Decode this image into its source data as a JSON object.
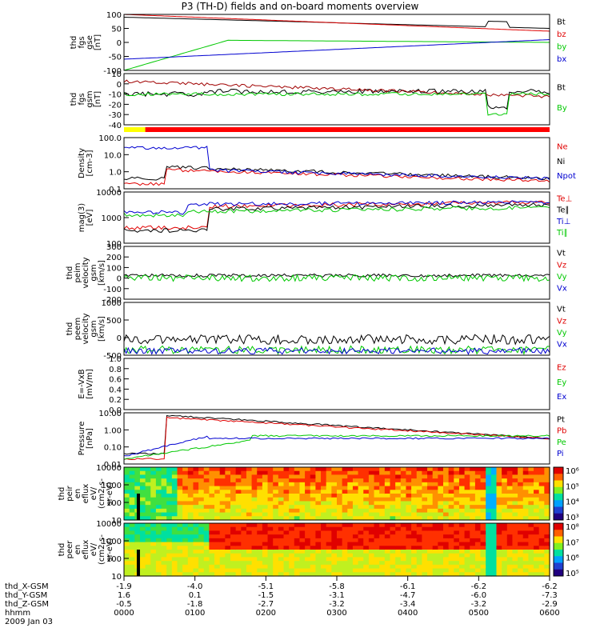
{
  "title": "P3 (TH-D) fields and on-board moments overview",
  "chart_data": {
    "type": "line",
    "x_time_labels": [
      "0000",
      "0100",
      "0200",
      "0300",
      "0400",
      "0500",
      "0600"
    ],
    "panels": [
      {
        "id": "fgs_gse",
        "ylabel": [
          "thd",
          "fgs",
          "gse",
          "[nT]"
        ],
        "yticks": [
          "100",
          "50",
          "0",
          "-50",
          "-100"
        ],
        "legend": [
          {
            "name": "Bt",
            "color": "#000000"
          },
          {
            "name": "bz",
            "color": "#e00000"
          },
          {
            "name": "by",
            "color": "#00c800"
          },
          {
            "name": "bx",
            "color": "#0000d0"
          }
        ]
      },
      {
        "id": "fgs_gsm",
        "ylabel": [
          "thd",
          "fgs",
          "gsm",
          "[nT]"
        ],
        "yticks": [
          "10",
          "0",
          "-10",
          "-20",
          "-30",
          "-40"
        ],
        "legend": [
          {
            "name": "Bt",
            "color": "#000000"
          },
          {
            "name": "By",
            "color": "#00c800"
          }
        ]
      },
      {
        "id": "density",
        "ylabel": [
          "Density",
          "[cm-3]"
        ],
        "yticks": [
          "100.0",
          "10.0",
          "1.0",
          "0.1"
        ],
        "legend": [
          {
            "name": "Ne",
            "color": "#e00000"
          },
          {
            "name": "Ni",
            "color": "#000000"
          },
          {
            "name": "Npot",
            "color": "#0000d0"
          }
        ]
      },
      {
        "id": "temp",
        "ylabel": [
          "mag(3)",
          "[eV]"
        ],
        "yticks": [
          "10000",
          "1000",
          "100"
        ],
        "legend": [
          {
            "name": "Te⊥",
            "color": "#e00000"
          },
          {
            "name": "Te∥",
            "color": "#000000"
          },
          {
            "name": "Ti⊥",
            "color": "#0000d0"
          },
          {
            "name": "Ti∥",
            "color": "#00c800"
          }
        ]
      },
      {
        "id": "peim_vel",
        "ylabel": [
          "thd",
          "peim",
          "velocity",
          "gsm",
          "[km/s]"
        ],
        "yticks": [
          "300",
          "200",
          "100",
          "0",
          "-100",
          "-200"
        ],
        "legend": [
          {
            "name": "Vt",
            "color": "#000000"
          },
          {
            "name": "Vz",
            "color": "#e00000"
          },
          {
            "name": "Vy",
            "color": "#00c800"
          },
          {
            "name": "Vx",
            "color": "#0000d0"
          }
        ]
      },
      {
        "id": "peem_vel",
        "ylabel": [
          "thd",
          "peem",
          "velocity",
          "gsm",
          "[km/s]"
        ],
        "yticks": [
          "1000",
          "500",
          "0",
          "-500"
        ],
        "legend": [
          {
            "name": "Vt",
            "color": "#000000"
          },
          {
            "name": "Vz",
            "color": "#e00000"
          },
          {
            "name": "Vy",
            "color": "#00c800"
          },
          {
            "name": "Vx",
            "color": "#0000d0"
          }
        ]
      },
      {
        "id": "efield",
        "ylabel": [
          "E=-VxB",
          "[mV/m]"
        ],
        "yticks": [
          "1.0",
          "0.8",
          "0.6",
          "0.4",
          "0.2",
          "0.0"
        ],
        "legend": [
          {
            "name": "Ez",
            "color": "#e00000"
          },
          {
            "name": "Ey",
            "color": "#00c800"
          },
          {
            "name": "Ex",
            "color": "#0000d0"
          }
        ]
      },
      {
        "id": "pressure",
        "ylabel": [
          "Pressure",
          "[nPa]"
        ],
        "yticks": [
          "10.00",
          "1.00",
          "0.10",
          "0.01"
        ],
        "legend": [
          {
            "name": "Pt",
            "color": "#000000"
          },
          {
            "name": "Pb",
            "color": "#e00000"
          },
          {
            "name": "Pe",
            "color": "#00c800"
          },
          {
            "name": "Pi",
            "color": "#0000d0"
          }
        ]
      },
      {
        "id": "peir_flux",
        "ylabel": [
          "thd",
          "peir",
          "en",
          "eflux",
          "eV/",
          "(cm2-s-",
          "sr-eV)"
        ],
        "yticks": [
          "10000",
          "1000",
          "100",
          "10"
        ],
        "colorbar": [
          "10⁶",
          "10⁵",
          "10⁴",
          "10³"
        ]
      },
      {
        "id": "peer_flux",
        "ylabel": [
          "thd",
          "peer",
          "en",
          "eflux",
          "eV/",
          "(cm2-s-",
          "sr-eV)"
        ],
        "yticks": [
          "10000",
          "1000",
          "100",
          "10"
        ],
        "colorbar": [
          "10⁸",
          "10⁷",
          "10⁶",
          "10⁵"
        ]
      }
    ],
    "ephemeris": [
      {
        "label": "thd_X-GSM",
        "values": [
          "-1.9",
          "-4.0",
          "-5.1",
          "-5.8",
          "-6.1",
          "-6.2",
          "-6.2"
        ]
      },
      {
        "label": "thd_Y-GSM",
        "values": [
          "1.6",
          "0.1",
          "-1.5",
          "-3.1",
          "-4.7",
          "-6.0",
          "-7.3"
        ]
      },
      {
        "label": "thd_Z-GSM",
        "values": [
          "-0.5",
          "-1.8",
          "-2.7",
          "-3.2",
          "-3.4",
          "-3.2",
          "-2.9"
        ]
      },
      {
        "label": "hhmm",
        "values": [
          "0000",
          "0100",
          "0200",
          "0300",
          "0400",
          "0500",
          "0600"
        ]
      }
    ],
    "date": "2009 Jan 03"
  }
}
